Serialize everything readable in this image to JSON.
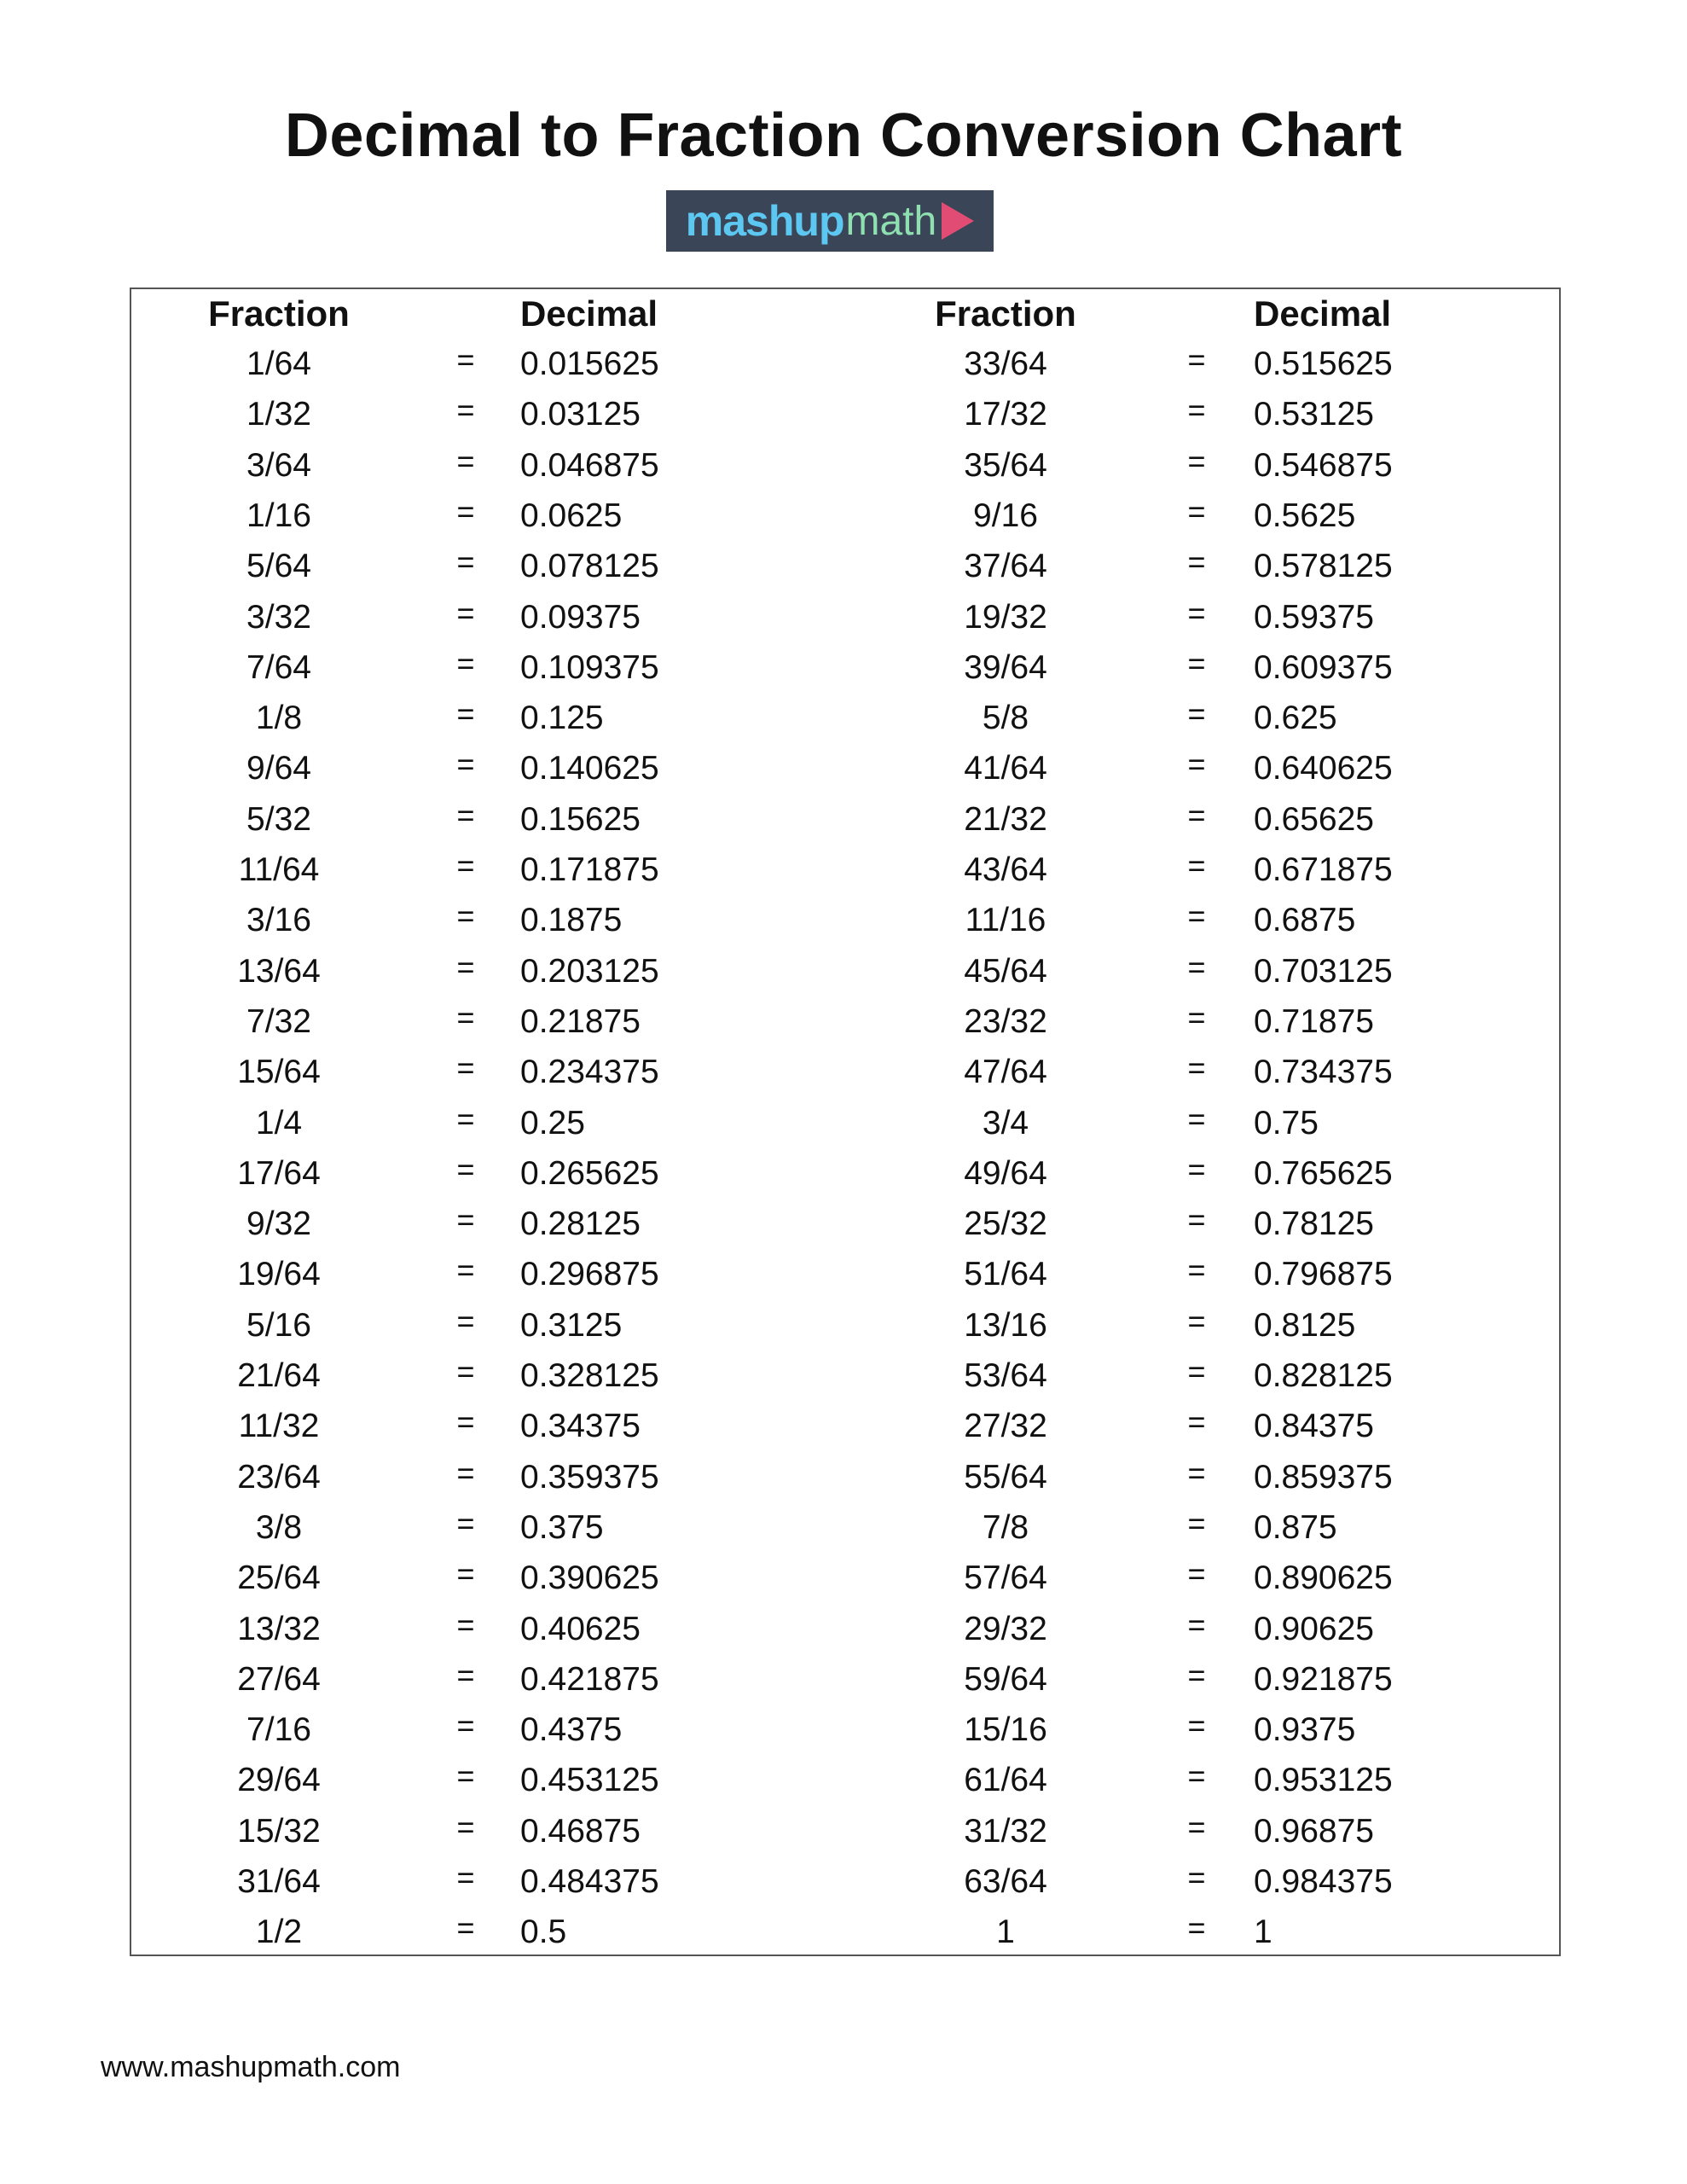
{
  "title": "Decimal to Fraction Conversion Chart",
  "logo": {
    "text_part1": "mashup",
    "text_part2": "math",
    "colors": {
      "background": "#3b4558",
      "mashup": "#5cc8f2",
      "math": "#8fe0b0",
      "play": "#e04c74"
    }
  },
  "table": {
    "headers": {
      "fraction": "Fraction",
      "decimal": "Decimal"
    },
    "equals": "=",
    "left": [
      [
        "1/64",
        "0.015625"
      ],
      [
        "1/32",
        "0.03125"
      ],
      [
        "3/64",
        "0.046875"
      ],
      [
        "1/16",
        "0.0625"
      ],
      [
        "5/64",
        "0.078125"
      ],
      [
        "3/32",
        "0.09375"
      ],
      [
        "7/64",
        "0.109375"
      ],
      [
        "1/8",
        "0.125"
      ],
      [
        "9/64",
        "0.140625"
      ],
      [
        "5/32",
        "0.15625"
      ],
      [
        "11/64",
        "0.171875"
      ],
      [
        "3/16",
        "0.1875"
      ],
      [
        "13/64",
        "0.203125"
      ],
      [
        "7/32",
        "0.21875"
      ],
      [
        "15/64",
        "0.234375"
      ],
      [
        "1/4",
        "0.25"
      ],
      [
        "17/64",
        "0.265625"
      ],
      [
        "9/32",
        "0.28125"
      ],
      [
        "19/64",
        "0.296875"
      ],
      [
        "5/16",
        "0.3125"
      ],
      [
        "21/64",
        "0.328125"
      ],
      [
        "11/32",
        "0.34375"
      ],
      [
        "23/64",
        "0.359375"
      ],
      [
        "3/8",
        "0.375"
      ],
      [
        "25/64",
        "0.390625"
      ],
      [
        "13/32",
        "0.40625"
      ],
      [
        "27/64",
        "0.421875"
      ],
      [
        "7/16",
        "0.4375"
      ],
      [
        "29/64",
        "0.453125"
      ],
      [
        "15/32",
        "0.46875"
      ],
      [
        "31/64",
        "0.484375"
      ],
      [
        "1/2",
        "0.5"
      ]
    ],
    "right": [
      [
        "33/64",
        "0.515625"
      ],
      [
        "17/32",
        "0.53125"
      ],
      [
        "35/64",
        "0.546875"
      ],
      [
        "9/16",
        "0.5625"
      ],
      [
        "37/64",
        "0.578125"
      ],
      [
        "19/32",
        "0.59375"
      ],
      [
        "39/64",
        "0.609375"
      ],
      [
        "5/8",
        "0.625"
      ],
      [
        "41/64",
        "0.640625"
      ],
      [
        "21/32",
        "0.65625"
      ],
      [
        "43/64",
        "0.671875"
      ],
      [
        "11/16",
        "0.6875"
      ],
      [
        "45/64",
        "0.703125"
      ],
      [
        "23/32",
        "0.71875"
      ],
      [
        "47/64",
        "0.734375"
      ],
      [
        "3/4",
        "0.75"
      ],
      [
        "49/64",
        "0.765625"
      ],
      [
        "25/32",
        "0.78125"
      ],
      [
        "51/64",
        "0.796875"
      ],
      [
        "13/16",
        "0.8125"
      ],
      [
        "53/64",
        "0.828125"
      ],
      [
        "27/32",
        "0.84375"
      ],
      [
        "55/64",
        "0.859375"
      ],
      [
        "7/8",
        "0.875"
      ],
      [
        "57/64",
        "0.890625"
      ],
      [
        "29/32",
        "0.90625"
      ],
      [
        "59/64",
        "0.921875"
      ],
      [
        "15/16",
        "0.9375"
      ],
      [
        "61/64",
        "0.953125"
      ],
      [
        "31/32",
        "0.96875"
      ],
      [
        "63/64",
        "0.984375"
      ],
      [
        "1",
        "1"
      ]
    ]
  },
  "footer": "www.mashupmath.com"
}
